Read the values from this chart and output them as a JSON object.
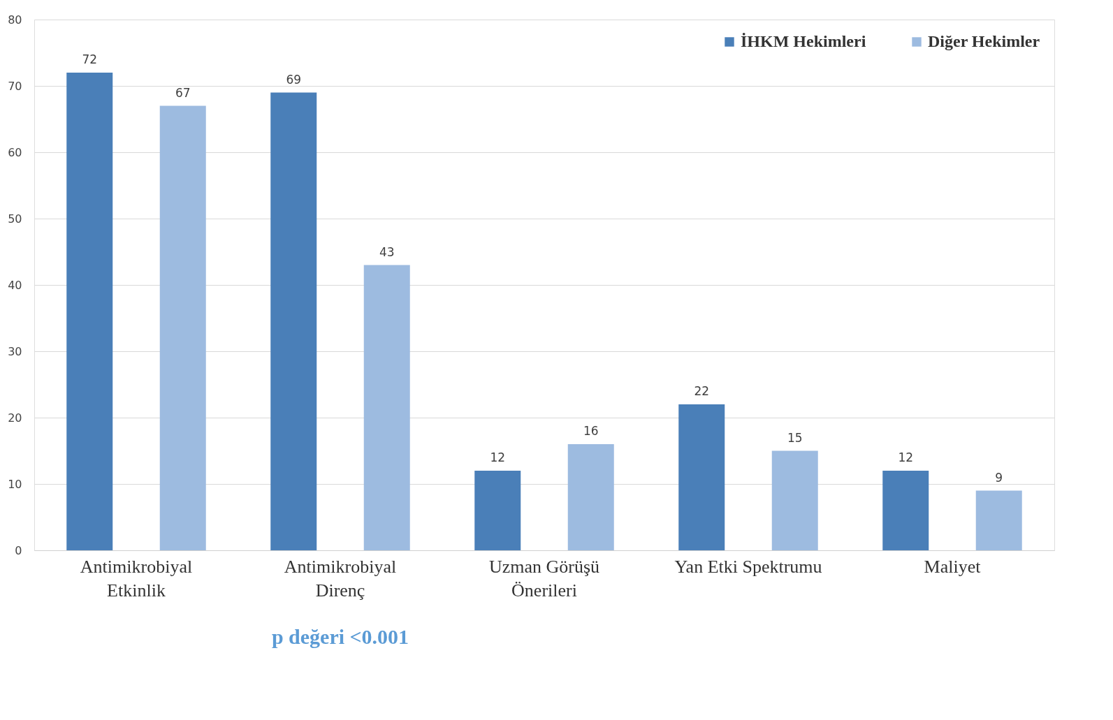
{
  "chart_data": {
    "type": "bar",
    "categories": [
      "Antimikrobiyal\nEtkinlik",
      "Antimikrobiyal\nDirenç",
      "Uzman Görüşü\nÖnerileri",
      "Yan Etki Spektrumu",
      "Maliyet"
    ],
    "series": [
      {
        "name": "İHKM Hekimleri",
        "color": "#4a7fb8",
        "values": [
          72,
          69,
          12,
          22,
          12
        ]
      },
      {
        "name": "Diğer Hekimler",
        "color": "#9dbbe0",
        "values": [
          67,
          43,
          16,
          15,
          9
        ]
      }
    ],
    "ylim": [
      0,
      80
    ],
    "yticks": [
      0,
      10,
      20,
      30,
      40,
      50,
      60,
      70,
      80
    ],
    "grid": "y",
    "legend": "top right",
    "data_labels": true,
    "annotations": [
      "p değeri <0.001"
    ]
  }
}
